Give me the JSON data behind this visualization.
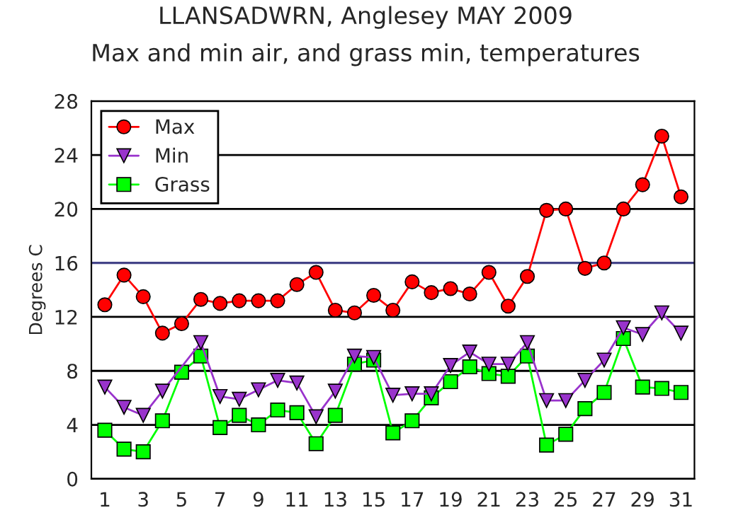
{
  "chart_data": {
    "type": "line",
    "title": "LLANSADWRN, Anglesey MAY 2009",
    "subtitle": "Max and min air, and grass min, temperatures",
    "ylabel": "Degrees C",
    "x": [
      1,
      2,
      3,
      4,
      5,
      6,
      7,
      8,
      9,
      10,
      11,
      12,
      13,
      14,
      15,
      16,
      17,
      18,
      19,
      20,
      21,
      22,
      23,
      24,
      25,
      26,
      27,
      28,
      29,
      30,
      31
    ],
    "series": [
      {
        "name": "Max",
        "color": "#ff0000",
        "marker": "circle",
        "values": [
          12.9,
          15.1,
          13.5,
          10.8,
          11.5,
          13.3,
          13.0,
          13.2,
          13.2,
          13.2,
          14.4,
          15.3,
          12.5,
          12.3,
          13.6,
          12.5,
          14.6,
          13.8,
          14.1,
          13.7,
          15.3,
          12.8,
          15.0,
          19.9,
          20.0,
          15.6,
          16.0,
          20.0,
          21.8,
          25.4,
          20.9
        ]
      },
      {
        "name": "Min",
        "color": "#9933cc",
        "marker": "triangle",
        "values": [
          6.8,
          5.3,
          4.7,
          6.5,
          null,
          10.1,
          6.1,
          5.9,
          6.6,
          7.3,
          7.1,
          4.6,
          6.5,
          9.1,
          9.0,
          6.2,
          6.3,
          6.3,
          8.4,
          9.4,
          8.5,
          8.5,
          10.1,
          5.8,
          5.8,
          7.3,
          8.8,
          11.2,
          10.7,
          12.3,
          10.8
        ]
      },
      {
        "name": "Grass",
        "color": "#00ff00",
        "marker": "square",
        "values": [
          3.6,
          2.2,
          2.0,
          4.3,
          7.9,
          9.1,
          3.8,
          4.7,
          4.0,
          5.1,
          4.9,
          2.6,
          4.7,
          8.5,
          8.8,
          3.4,
          4.3,
          6.0,
          7.2,
          8.3,
          7.8,
          7.6,
          9.1,
          2.5,
          3.3,
          5.2,
          6.4,
          10.4,
          6.8,
          6.7,
          6.4
        ]
      }
    ],
    "xlim": [
      0.3,
      31.7
    ],
    "xticks": [
      1,
      3,
      5,
      7,
      9,
      11,
      13,
      15,
      17,
      19,
      21,
      23,
      25,
      27,
      29,
      31
    ],
    "ylim": [
      0,
      28
    ],
    "yticks": [
      0,
      4,
      8,
      12,
      16,
      20,
      24,
      28
    ],
    "ref_lines": [
      {
        "axis": "y",
        "value": 16,
        "color": "#444488"
      }
    ],
    "grid": "y",
    "legend": "top left"
  }
}
